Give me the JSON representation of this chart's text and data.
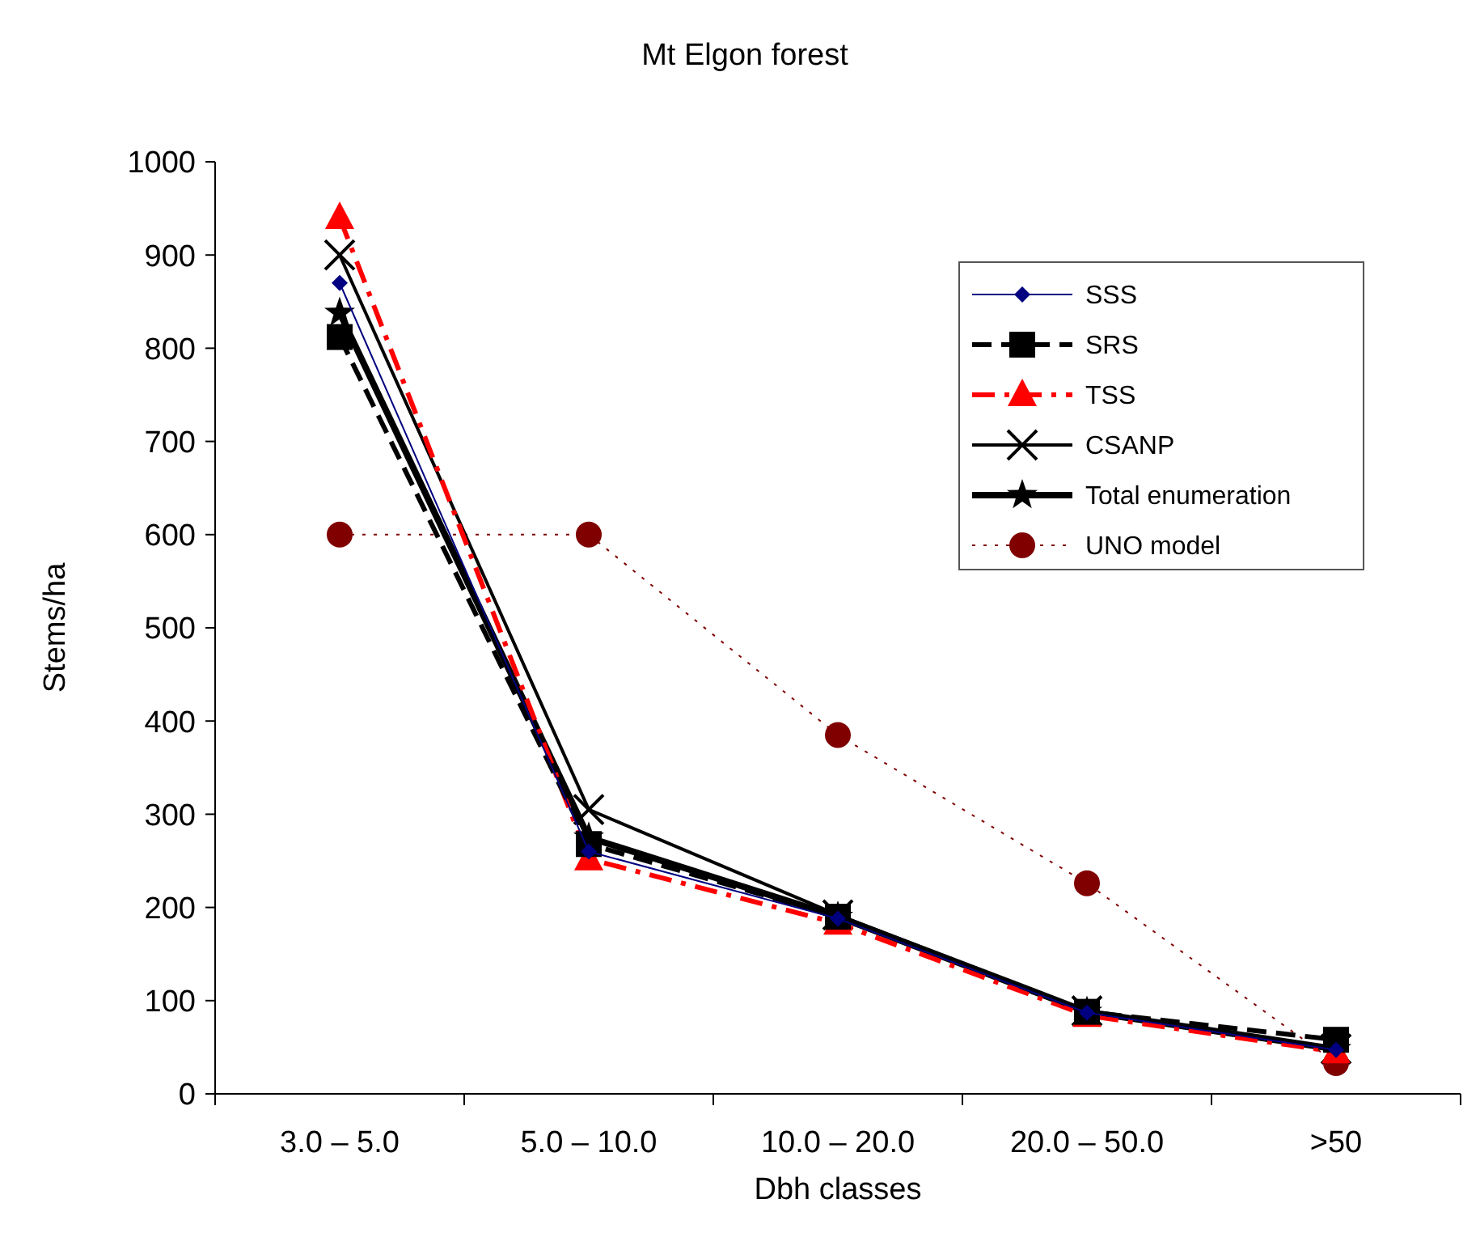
{
  "chart_data": {
    "type": "line",
    "title": "Mt Elgon forest",
    "xlabel": "Dbh classes",
    "ylabel": "Stems/ha",
    "categories": [
      "3.0 – 5.0",
      "5.0 – 10.0",
      "10.0 – 20.0",
      "20.0 – 50.0",
      ">50"
    ],
    "ylim": [
      0,
      1000
    ],
    "yticks": [
      0,
      100,
      200,
      300,
      400,
      500,
      600,
      700,
      800,
      900,
      1000
    ],
    "grid": false,
    "legend": "top right",
    "series": [
      {
        "name": "SSS",
        "color": "#000080",
        "marker": "diamond",
        "line_style": "solid",
        "values": [
          870,
          260,
          188,
          87,
          47
        ]
      },
      {
        "name": "SRS",
        "color": "#000000",
        "marker": "square",
        "line_style": "dashed",
        "values": [
          812,
          268,
          190,
          88,
          58
        ]
      },
      {
        "name": "TSS",
        "color": "#ff0000",
        "marker": "triangle",
        "line_style": "dashed",
        "values": [
          940,
          252,
          183,
          84,
          45
        ]
      },
      {
        "name": "CSANP",
        "color": "#000000",
        "marker": "cross",
        "line_style": "solid",
        "values": [
          900,
          305,
          192,
          89,
          48
        ]
      },
      {
        "name": "Total enumeration",
        "color": "#000000",
        "marker": "star",
        "line_style": "solid",
        "values": [
          838,
          275,
          190,
          88,
          48
        ]
      },
      {
        "name": "UNO model",
        "color": "#800000",
        "marker": "circle",
        "line_style": "dotted",
        "values": [
          600,
          600,
          385,
          226,
          33
        ]
      }
    ]
  }
}
